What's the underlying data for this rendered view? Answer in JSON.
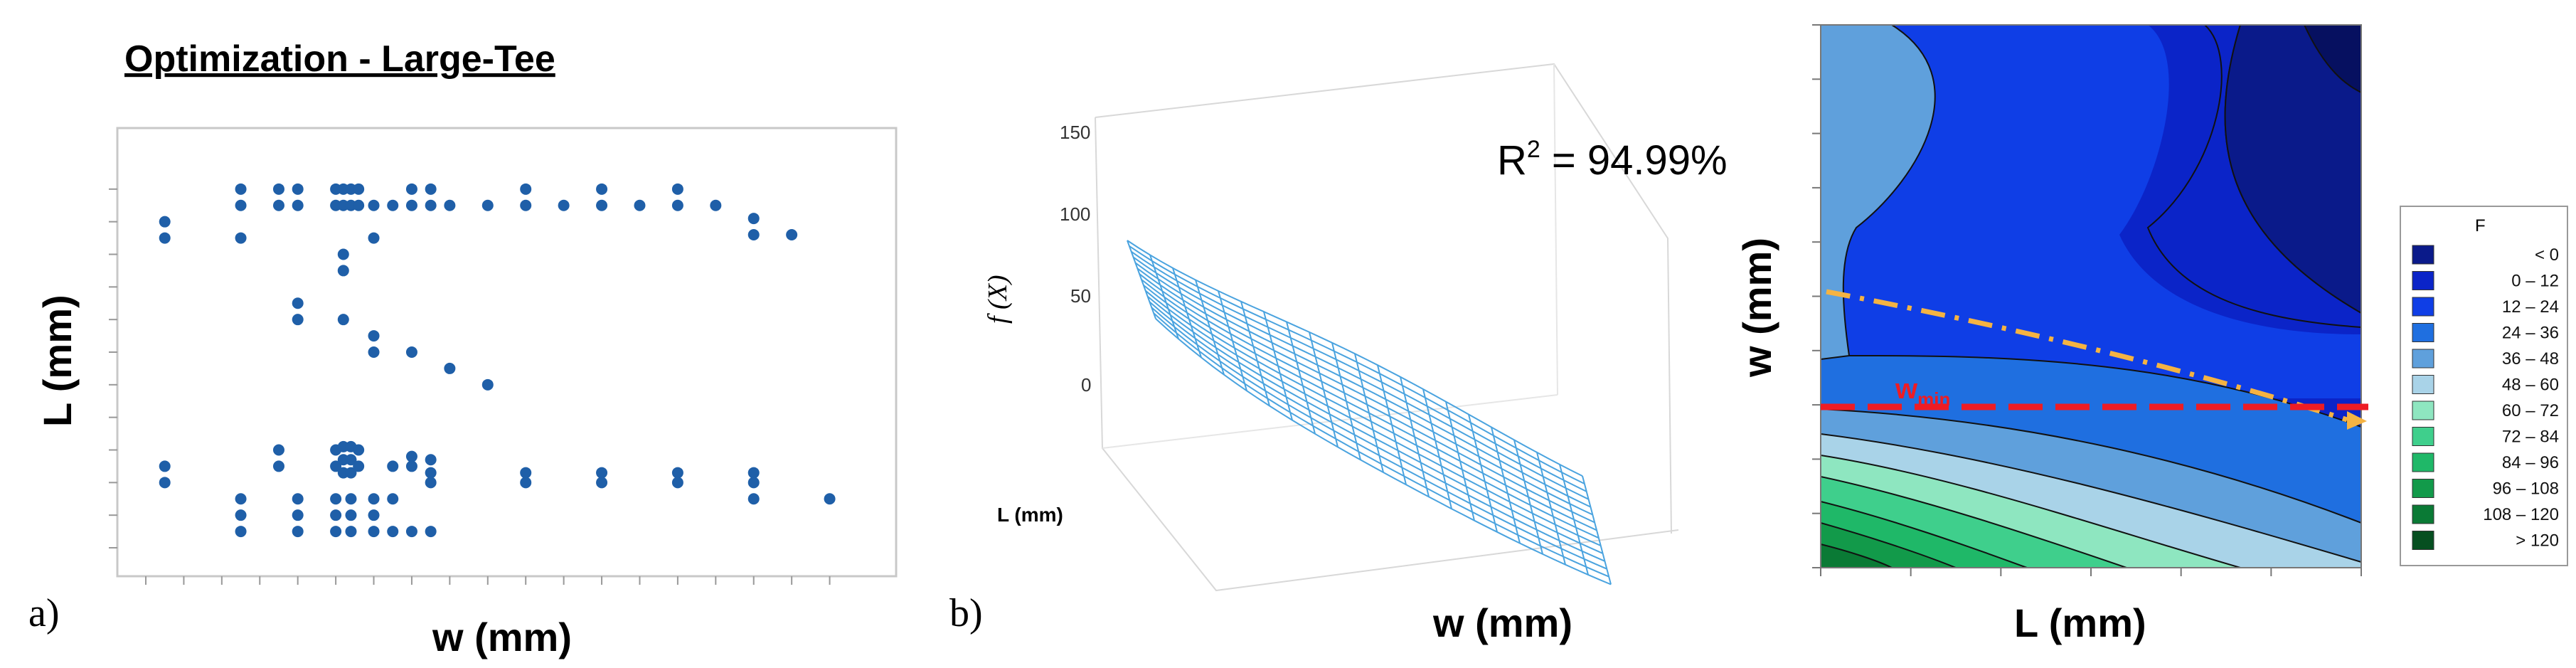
{
  "chart_data": [
    {
      "type": "scatter",
      "panel": "a)",
      "title": "Optimization - Large-Tee",
      "xlabel": "w (mm)",
      "ylabel": "L (mm)",
      "color": "#1f5fa8",
      "grid": false,
      "points": [
        [
          0.5,
          10
        ],
        [
          0.5,
          9.5
        ],
        [
          0.5,
          2.5
        ],
        [
          0.5,
          2
        ],
        [
          2.5,
          11
        ],
        [
          2.5,
          10.5
        ],
        [
          2.5,
          9.5
        ],
        [
          2.5,
          1.5
        ],
        [
          2.5,
          1
        ],
        [
          2.5,
          0.5
        ],
        [
          3.5,
          11
        ],
        [
          3.5,
          10.5
        ],
        [
          3.5,
          3
        ],
        [
          3.5,
          2.5
        ],
        [
          4,
          11
        ],
        [
          4,
          10.5
        ],
        [
          4,
          7.5
        ],
        [
          4,
          7
        ],
        [
          4,
          1.5
        ],
        [
          4,
          1
        ],
        [
          4,
          0.5
        ],
        [
          5,
          11
        ],
        [
          5,
          10.5
        ],
        [
          5,
          3
        ],
        [
          5,
          2.5
        ],
        [
          5,
          1.5
        ],
        [
          5,
          1
        ],
        [
          5,
          0.5
        ],
        [
          5.2,
          11
        ],
        [
          5.2,
          10.5
        ],
        [
          5.2,
          9
        ],
        [
          5.2,
          8.5
        ],
        [
          5.2,
          7
        ],
        [
          5.2,
          3.1
        ],
        [
          5.2,
          2.7
        ],
        [
          5.2,
          2.3
        ],
        [
          5.4,
          11
        ],
        [
          5.4,
          10.5
        ],
        [
          5.4,
          3.1
        ],
        [
          5.4,
          2.7
        ],
        [
          5.4,
          2.3
        ],
        [
          5.4,
          1.5
        ],
        [
          5.4,
          1
        ],
        [
          5.4,
          0.5
        ],
        [
          5.6,
          11
        ],
        [
          5.6,
          10.5
        ],
        [
          5.6,
          3
        ],
        [
          5.6,
          2.5
        ],
        [
          6,
          10.5
        ],
        [
          6,
          9.5
        ],
        [
          6,
          6.5
        ],
        [
          6,
          6
        ],
        [
          6,
          1.5
        ],
        [
          6,
          1
        ],
        [
          6,
          0.5
        ],
        [
          6.5,
          10.5
        ],
        [
          6.5,
          2.5
        ],
        [
          6.5,
          1.5
        ],
        [
          6.5,
          0.5
        ],
        [
          7,
          11
        ],
        [
          7,
          10.5
        ],
        [
          7,
          6
        ],
        [
          7,
          2.8
        ],
        [
          7,
          2.5
        ],
        [
          7,
          0.5
        ],
        [
          7.5,
          11
        ],
        [
          7.5,
          10.5
        ],
        [
          7.5,
          2.7
        ],
        [
          7.5,
          2.3
        ],
        [
          7.5,
          2
        ],
        [
          7.5,
          0.5
        ],
        [
          8,
          10.5
        ],
        [
          8,
          5.5
        ],
        [
          9,
          10.5
        ],
        [
          9,
          5
        ],
        [
          10,
          11
        ],
        [
          10,
          10.5
        ],
        [
          10,
          2.3
        ],
        [
          10,
          2
        ],
        [
          11,
          10.5
        ],
        [
          12,
          11
        ],
        [
          12,
          10.5
        ],
        [
          12,
          2.3
        ],
        [
          12,
          2
        ],
        [
          13,
          10.5
        ],
        [
          14,
          11
        ],
        [
          14,
          10.5
        ],
        [
          14,
          2.3
        ],
        [
          14,
          2
        ],
        [
          15,
          10.5
        ],
        [
          16,
          10.1
        ],
        [
          16,
          9.6
        ],
        [
          16,
          2.3
        ],
        [
          16,
          2
        ],
        [
          16,
          1.5
        ],
        [
          17,
          9.6
        ],
        [
          18,
          1.5
        ]
      ],
      "xlim": [
        0,
        19
      ],
      "ylim": [
        0,
        12
      ]
    },
    {
      "type": "surface",
      "panel": "b)",
      "zlabel": "f (X)",
      "xlabel": "w (mm)",
      "ylabel": "L (mm)",
      "zticks": [
        "150",
        "100",
        "50",
        "0"
      ],
      "annotation": "R",
      "annotation_sup": "2",
      "annotation_rest": " = 94.99%",
      "color": "#4aa3df",
      "grid_lines": 14
    },
    {
      "type": "contour",
      "xlabel": "L (mm)",
      "ylabel": "w (mm)",
      "legend_title": "F",
      "legend": [
        {
          "label": "<    0",
          "color": "#0a1a8a"
        },
        {
          "label": "0 –   12",
          "color": "#0b24c8"
        },
        {
          "label": "12 –   24",
          "color": "#0f3ee6"
        },
        {
          "label": "24 –   36",
          "color": "#1f6fe0"
        },
        {
          "label": "36 –   48",
          "color": "#5fa0dc"
        },
        {
          "label": "48 –   60",
          "color": "#a9d3e8"
        },
        {
          "label": "60 –   72",
          "color": "#8ee6c0"
        },
        {
          "label": "72 –   84",
          "color": "#3fcf8c"
        },
        {
          "label": "84 –   96",
          "color": "#1fb868"
        },
        {
          "label": "96 – 108",
          "color": "#129a4a"
        },
        {
          "label": "108 – 120",
          "color": "#0a7a35"
        },
        {
          "label": ">  120",
          "color": "#064f20"
        }
      ],
      "annotations": {
        "wmin_label": "w",
        "wmin_sub": "min",
        "wmin_color": "#ee1c24",
        "path_color": "#f5b342"
      }
    }
  ]
}
